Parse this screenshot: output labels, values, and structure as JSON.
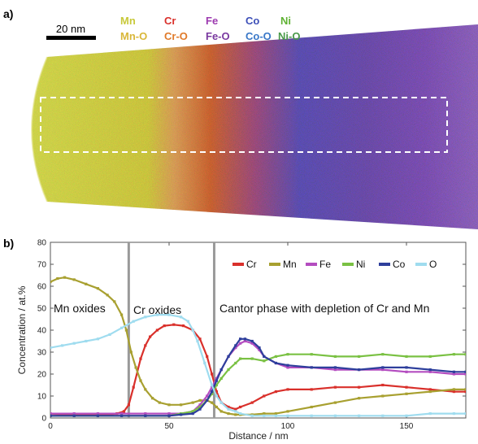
{
  "panel_a": {
    "label": "a)",
    "scale_bar": "20 nm",
    "element_legend": [
      {
        "element": "Mn",
        "oxide": "Mn-O",
        "color": "#c8c93a",
        "oxide_color": "#d9b73a"
      },
      {
        "element": "Cr",
        "oxide": "Cr-O",
        "color": "#d9302b",
        "oxide_color": "#e07a2a"
      },
      {
        "element": "Fe",
        "oxide": "Fe-O",
        "color": "#9d3bb0",
        "oxide_color": "#7a3aa0"
      },
      {
        "element": "Co",
        "oxide": "Co-O",
        "color": "#3d4fb8",
        "oxide_color": "#3a78c8"
      },
      {
        "element": "Ni",
        "oxide": "Ni-O",
        "color": "#5fb233",
        "oxide_color": "#4a9a4a"
      }
    ]
  },
  "panel_b": {
    "label": "b)",
    "regions": [
      "Mn oxides",
      "Cr oxides",
      "Cantor phase with depletion of Cr and Mn"
    ],
    "boundaries": [
      33,
      69
    ]
  },
  "chart_data": {
    "type": "line",
    "xlabel": "Distance / nm",
    "ylabel": "Concentration / at.%",
    "xlim": [
      0,
      175
    ],
    "ylim": [
      0,
      80
    ],
    "xticks": [
      0,
      50,
      100,
      150
    ],
    "yticks": [
      0,
      10,
      20,
      30,
      40,
      50,
      60,
      70,
      80
    ],
    "legend_position": "top-right",
    "series": [
      {
        "name": "Cr",
        "color": "#d9302b",
        "x": [
          0,
          5,
          10,
          15,
          20,
          25,
          28,
          31,
          33,
          35,
          38,
          40,
          42,
          45,
          48,
          52,
          56,
          60,
          63,
          66,
          68,
          70,
          72,
          75,
          78,
          80,
          85,
          90,
          95,
          100,
          110,
          120,
          130,
          140,
          150,
          160,
          170,
          175
        ],
        "y": [
          2,
          1.5,
          1.5,
          1.5,
          1.5,
          1.5,
          2,
          3,
          6,
          14,
          27,
          33,
          37,
          40,
          42,
          42.5,
          42,
          40,
          36,
          28,
          20,
          12,
          7,
          5,
          4,
          5,
          7,
          10,
          12,
          13,
          13,
          14,
          14,
          15,
          14,
          13,
          12,
          12
        ]
      },
      {
        "name": "Mn",
        "color": "#a8a030",
        "x": [
          0,
          3,
          6,
          10,
          15,
          20,
          24,
          27,
          30,
          32,
          34,
          36,
          38,
          40,
          43,
          46,
          50,
          55,
          60,
          63,
          66,
          68,
          70,
          72,
          75,
          78,
          80,
          85,
          90,
          95,
          100,
          110,
          120,
          130,
          140,
          150,
          160,
          170,
          175
        ],
        "y": [
          62,
          63.5,
          64,
          63,
          61,
          59,
          56,
          53,
          47,
          40,
          30,
          23,
          17,
          13,
          9,
          7,
          6,
          6,
          7,
          8,
          8,
          7,
          5,
          3,
          2,
          1.5,
          1.5,
          1.5,
          2,
          2,
          3,
          5,
          7,
          9,
          10,
          11,
          12,
          13,
          13
        ]
      },
      {
        "name": "Fe",
        "color": "#b44dc0",
        "x": [
          0,
          10,
          20,
          30,
          40,
          50,
          55,
          60,
          63,
          66,
          68,
          70,
          72,
          75,
          78,
          80,
          82,
          85,
          88,
          90,
          95,
          100,
          110,
          120,
          130,
          140,
          150,
          160,
          170,
          175
        ],
        "y": [
          2,
          2,
          2,
          2,
          2,
          2,
          2,
          3,
          6,
          10,
          14,
          18,
          22,
          28,
          32,
          34,
          35,
          34,
          31,
          28,
          25,
          23,
          23,
          22,
          22,
          22,
          21,
          21,
          20,
          20
        ]
      },
      {
        "name": "Ni",
        "color": "#7ac143",
        "x": [
          0,
          10,
          20,
          30,
          40,
          50,
          55,
          60,
          63,
          66,
          68,
          70,
          72,
          75,
          78,
          80,
          85,
          90,
          95,
          100,
          110,
          120,
          130,
          140,
          150,
          160,
          170,
          175
        ],
        "y": [
          1,
          1,
          1,
          1,
          1,
          1,
          2,
          3,
          5,
          8,
          11,
          15,
          18,
          22,
          25,
          27,
          27,
          26,
          28,
          29,
          29,
          28,
          28,
          29,
          28,
          28,
          29,
          29
        ]
      },
      {
        "name": "Co",
        "color": "#2e3f9c",
        "x": [
          0,
          10,
          20,
          30,
          40,
          50,
          55,
          60,
          63,
          66,
          68,
          70,
          72,
          75,
          78,
          80,
          82,
          85,
          88,
          90,
          95,
          100,
          110,
          120,
          130,
          140,
          150,
          160,
          170,
          175
        ],
        "y": [
          1,
          1,
          1,
          1,
          1,
          1,
          1.5,
          2,
          4,
          8,
          12,
          17,
          22,
          28,
          33,
          36,
          36,
          35,
          32,
          28,
          25,
          24,
          23,
          23,
          22,
          23,
          23,
          22,
          21,
          21
        ]
      },
      {
        "name": "O",
        "color": "#9fdcef",
        "x": [
          0,
          5,
          10,
          15,
          20,
          25,
          30,
          35,
          40,
          45,
          50,
          55,
          58,
          60,
          62,
          65,
          68,
          70,
          72,
          75,
          78,
          80,
          85,
          90,
          95,
          100,
          110,
          120,
          130,
          140,
          150,
          160,
          170,
          175
        ],
        "y": [
          32,
          33,
          34,
          35,
          36,
          38,
          41,
          44,
          46,
          47,
          47,
          46,
          44,
          40,
          35,
          25,
          15,
          10,
          7,
          4,
          3,
          2,
          1,
          1,
          1,
          1,
          1,
          1,
          1,
          1,
          1,
          2,
          2,
          2
        ]
      }
    ]
  }
}
